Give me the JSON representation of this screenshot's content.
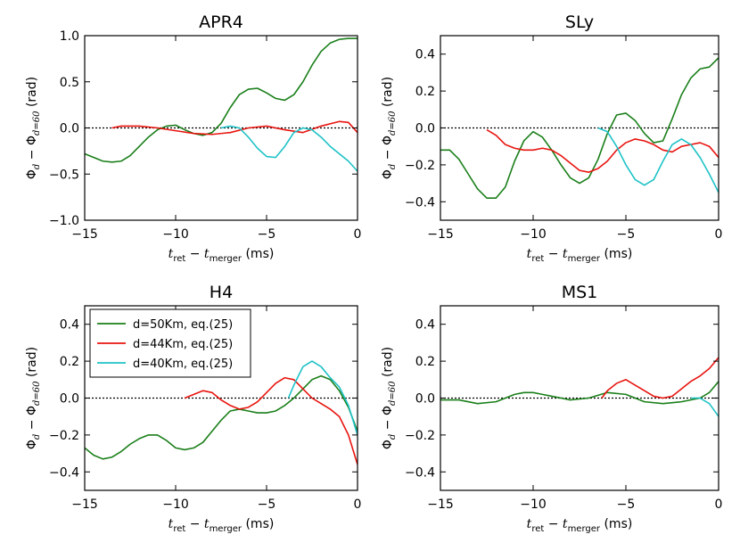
{
  "chart_data": [
    {
      "type": "line",
      "title": "APR4",
      "xlabel": "t_ret − t_merger (ms)",
      "ylabel": "Φ_d − Φ_{d=60} (rad)",
      "xlim": [
        -15,
        0
      ],
      "ylim": [
        -1.0,
        1.0
      ],
      "xticks": [
        -15,
        -10,
        -5,
        0
      ],
      "yticks": [
        -1.0,
        -0.5,
        0.0,
        0.5,
        1.0
      ],
      "ytick_labels": [
        "-1.0",
        "-0.5",
        "0.0",
        "0.5",
        "1.0"
      ],
      "reference_line": 0,
      "series": [
        {
          "name": "d=50Km, eq.(25)",
          "color": "#1a7f1a",
          "x": [
            -15,
            -14.5,
            -14,
            -13.5,
            -13,
            -12.5,
            -12,
            -11.5,
            -11,
            -10.5,
            -10,
            -9.5,
            -9,
            -8.5,
            -8,
            -7.5,
            -7,
            -6.5,
            -6,
            -5.5,
            -5,
            -4.5,
            -4,
            -3.5,
            -3,
            -2.5,
            -2,
            -1.5,
            -1,
            -0.5,
            0
          ],
          "y": [
            -0.28,
            -0.32,
            -0.36,
            -0.37,
            -0.36,
            -0.3,
            -0.2,
            -0.1,
            -0.02,
            0.02,
            0.03,
            -0.02,
            -0.06,
            -0.08,
            -0.05,
            0.05,
            0.22,
            0.36,
            0.42,
            0.43,
            0.38,
            0.32,
            0.3,
            0.36,
            0.5,
            0.68,
            0.83,
            0.92,
            0.96,
            0.97,
            0.97
          ]
        },
        {
          "name": "d=44Km, eq.(25)",
          "color": "#e8140f",
          "x": [
            -13.5,
            -13,
            -12,
            -11,
            -10,
            -9,
            -8,
            -7,
            -6,
            -5,
            -4,
            -3,
            -2,
            -1,
            -0.5,
            0
          ],
          "y": [
            0.0,
            0.02,
            0.02,
            0.0,
            -0.03,
            -0.06,
            -0.07,
            -0.05,
            0.0,
            0.02,
            -0.02,
            -0.05,
            0.02,
            0.07,
            0.06,
            -0.05
          ]
        },
        {
          "name": "d=40Km, eq.(25)",
          "color": "#1ec2c7",
          "x": [
            -7.5,
            -7,
            -6.5,
            -6,
            -5.5,
            -5,
            -4.5,
            -4,
            -3.5,
            -3,
            -2.5,
            -2,
            -1.5,
            -1,
            -0.5,
            0
          ],
          "y": [
            0.0,
            0.02,
            0.0,
            -0.1,
            -0.22,
            -0.31,
            -0.32,
            -0.2,
            -0.05,
            0.0,
            -0.02,
            -0.1,
            -0.2,
            -0.28,
            -0.36,
            -0.47
          ]
        }
      ]
    },
    {
      "type": "line",
      "title": "SLy",
      "xlabel": "t_ret − t_merger (ms)",
      "ylabel": "Φ_d − Φ_{d=60} (rad)",
      "xlim": [
        -15,
        0
      ],
      "ylim": [
        -0.5,
        0.5
      ],
      "xticks": [
        -15,
        -10,
        -5,
        0
      ],
      "yticks": [
        -0.4,
        -0.2,
        0.0,
        0.2,
        0.4
      ],
      "ytick_labels": [
        "-0.4",
        "-0.2",
        "0.0",
        "0.2",
        "0.4"
      ],
      "reference_line": 0,
      "series": [
        {
          "name": "d=50Km, eq.(25)",
          "color": "#1a7f1a",
          "x": [
            -15,
            -14.5,
            -14,
            -13.5,
            -13,
            -12.5,
            -12,
            -11.5,
            -11,
            -10.5,
            -10,
            -9.5,
            -9,
            -8.5,
            -8,
            -7.5,
            -7,
            -6.5,
            -6,
            -5.5,
            -5,
            -4.5,
            -4,
            -3.5,
            -3,
            -2.5,
            -2,
            -1.5,
            -1,
            -0.5,
            0
          ],
          "y": [
            -0.12,
            -0.12,
            -0.17,
            -0.25,
            -0.33,
            -0.38,
            -0.38,
            -0.32,
            -0.18,
            -0.07,
            -0.02,
            -0.05,
            -0.12,
            -0.2,
            -0.27,
            -0.3,
            -0.27,
            -0.17,
            -0.03,
            0.07,
            0.08,
            0.04,
            -0.03,
            -0.08,
            -0.07,
            0.05,
            0.18,
            0.27,
            0.32,
            0.33,
            0.38
          ]
        },
        {
          "name": "d=44Km, eq.(25)",
          "color": "#e8140f",
          "x": [
            -12.5,
            -12,
            -11.5,
            -11,
            -10.5,
            -10,
            -9.5,
            -9,
            -8.5,
            -8,
            -7.5,
            -7,
            -6.5,
            -6,
            -5.5,
            -5,
            -4.5,
            -4,
            -3.5,
            -3,
            -2.5,
            -2,
            -1.5,
            -1,
            -0.5,
            0
          ],
          "y": [
            -0.01,
            -0.04,
            -0.09,
            -0.11,
            -0.12,
            -0.12,
            -0.11,
            -0.12,
            -0.15,
            -0.19,
            -0.23,
            -0.24,
            -0.22,
            -0.18,
            -0.12,
            -0.08,
            -0.06,
            -0.07,
            -0.09,
            -0.12,
            -0.13,
            -0.1,
            -0.09,
            -0.08,
            -0.1,
            -0.16
          ]
        },
        {
          "name": "d=40Km, eq.(25)",
          "color": "#1ec2c7",
          "x": [
            -6.5,
            -6,
            -5.5,
            -5,
            -4.5,
            -4,
            -3.5,
            -3,
            -2.5,
            -2,
            -1.5,
            -1,
            -0.5,
            0
          ],
          "y": [
            0.0,
            -0.02,
            -0.1,
            -0.2,
            -0.28,
            -0.31,
            -0.28,
            -0.18,
            -0.09,
            -0.06,
            -0.09,
            -0.16,
            -0.25,
            -0.35
          ]
        }
      ]
    },
    {
      "type": "line",
      "title": "H4",
      "xlabel": "t_ret − t_merger (ms)",
      "ylabel": "Φ_d − Φ_{d=60} (rad)",
      "xlim": [
        -15,
        0
      ],
      "ylim": [
        -0.5,
        0.5
      ],
      "xticks": [
        -15,
        -10,
        -5,
        0
      ],
      "yticks": [
        -0.4,
        -0.2,
        0.0,
        0.2,
        0.4
      ],
      "ytick_labels": [
        "-0.4",
        "-0.2",
        "0.0",
        "0.2",
        "0.4"
      ],
      "reference_line": 0,
      "legend": {
        "location": "top-left",
        "entries": [
          "d=50Km, eq.(25)",
          "d=44Km, eq.(25)",
          "d=40Km, eq.(25)"
        ]
      },
      "series": [
        {
          "name": "d=50Km, eq.(25)",
          "color": "#1a7f1a",
          "x": [
            -15,
            -14.5,
            -14,
            -13.5,
            -13,
            -12.5,
            -12,
            -11.5,
            -11,
            -10.5,
            -10,
            -9.5,
            -9,
            -8.5,
            -8,
            -7.5,
            -7,
            -6.5,
            -6,
            -5.5,
            -5,
            -4.5,
            -4,
            -3.5,
            -3,
            -2.5,
            -2,
            -1.5,
            -1,
            -0.5,
            0
          ],
          "y": [
            -0.27,
            -0.31,
            -0.33,
            -0.32,
            -0.29,
            -0.25,
            -0.22,
            -0.2,
            -0.2,
            -0.23,
            -0.27,
            -0.28,
            -0.27,
            -0.24,
            -0.18,
            -0.12,
            -0.07,
            -0.06,
            -0.07,
            -0.08,
            -0.08,
            -0.07,
            -0.04,
            0.0,
            0.05,
            0.1,
            0.12,
            0.1,
            0.04,
            -0.05,
            -0.18
          ]
        },
        {
          "name": "d=44Km, eq.(25)",
          "color": "#e8140f",
          "x": [
            -9.5,
            -9,
            -8.5,
            -8,
            -7.5,
            -7,
            -6.5,
            -6,
            -5.5,
            -5,
            -4.5,
            -4,
            -3.5,
            -3,
            -2.5,
            -2,
            -1.5,
            -1,
            -0.5,
            0
          ],
          "y": [
            0.0,
            0.02,
            0.04,
            0.03,
            -0.01,
            -0.04,
            -0.06,
            -0.05,
            -0.02,
            0.03,
            0.08,
            0.11,
            0.1,
            0.05,
            0.0,
            -0.03,
            -0.06,
            -0.1,
            -0.2,
            -0.36
          ]
        },
        {
          "name": "d=40Km, eq.(25)",
          "color": "#1ec2c7",
          "x": [
            -3.8,
            -3.5,
            -3,
            -2.5,
            -2,
            -1.5,
            -1,
            -0.5,
            0
          ],
          "y": [
            0.0,
            0.07,
            0.17,
            0.2,
            0.17,
            0.11,
            0.06,
            -0.04,
            -0.2
          ]
        }
      ]
    },
    {
      "type": "line",
      "title": "MS1",
      "xlabel": "t_ret − t_merger (ms)",
      "ylabel": "Φ_d − Φ_{d=60} (rad)",
      "xlim": [
        -15,
        0
      ],
      "ylim": [
        -0.5,
        0.5
      ],
      "xticks": [
        -15,
        -10,
        -5,
        0
      ],
      "yticks": [
        -0.4,
        -0.2,
        0.0,
        0.2,
        0.4
      ],
      "ytick_labels": [
        "-0.4",
        "-0.2",
        "0.0",
        "0.2",
        "0.4"
      ],
      "reference_line": 0,
      "series": [
        {
          "name": "d=50Km, eq.(25)",
          "color": "#1a7f1a",
          "x": [
            -15,
            -14,
            -13,
            -12,
            -11,
            -10.5,
            -10,
            -9.5,
            -9,
            -8,
            -7,
            -6,
            -5,
            -4,
            -3,
            -2,
            -1,
            -0.5,
            0
          ],
          "y": [
            -0.01,
            -0.01,
            -0.03,
            -0.02,
            0.02,
            0.03,
            0.03,
            0.02,
            0.01,
            -0.01,
            0.0,
            0.03,
            0.02,
            -0.02,
            -0.03,
            -0.02,
            0.0,
            0.03,
            0.09
          ]
        },
        {
          "name": "d=44Km, eq.(25)",
          "color": "#e8140f",
          "x": [
            -6.3,
            -6,
            -5.5,
            -5,
            -4.5,
            -4,
            -3.5,
            -3,
            -2.5,
            -2,
            -1.5,
            -1,
            -0.5,
            0
          ],
          "y": [
            0.0,
            0.04,
            0.08,
            0.1,
            0.07,
            0.04,
            0.01,
            0.0,
            0.01,
            0.05,
            0.09,
            0.12,
            0.16,
            0.22
          ]
        },
        {
          "name": "d=40Km, eq.(25)",
          "color": "#1ec2c7",
          "x": [
            -1.5,
            -1,
            -0.5,
            0
          ],
          "y": [
            0.0,
            0.0,
            -0.03,
            -0.1
          ]
        }
      ]
    }
  ]
}
